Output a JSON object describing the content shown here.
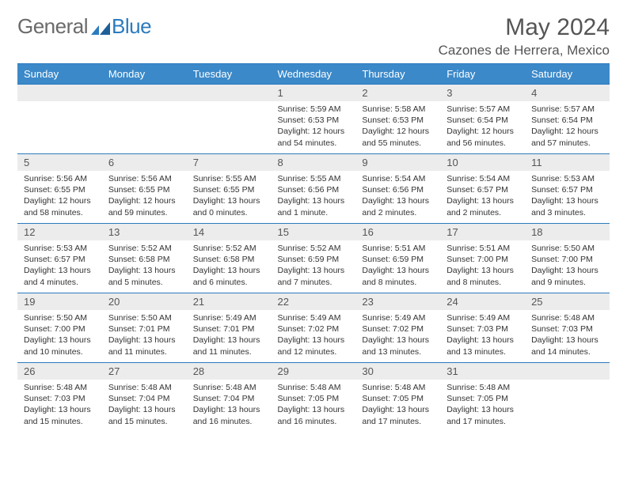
{
  "logo": {
    "part1": "General",
    "part2": "Blue"
  },
  "header": {
    "month_title": "May 2024",
    "location": "Cazones de Herrera, Mexico"
  },
  "colors": {
    "header_bg": "#3b89c9",
    "header_text": "#ffffff",
    "rule": "#2b7bbf",
    "daynum_bg": "#ececec",
    "text": "#333333",
    "logo_gray": "#6a6a6a",
    "logo_blue": "#2b7bbf"
  },
  "dow": [
    "Sunday",
    "Monday",
    "Tuesday",
    "Wednesday",
    "Thursday",
    "Friday",
    "Saturday"
  ],
  "weeks": [
    [
      null,
      null,
      null,
      {
        "d": "1",
        "sr": "5:59 AM",
        "ss": "6:53 PM",
        "dl": "12 hours and 54 minutes."
      },
      {
        "d": "2",
        "sr": "5:58 AM",
        "ss": "6:53 PM",
        "dl": "12 hours and 55 minutes."
      },
      {
        "d": "3",
        "sr": "5:57 AM",
        "ss": "6:54 PM",
        "dl": "12 hours and 56 minutes."
      },
      {
        "d": "4",
        "sr": "5:57 AM",
        "ss": "6:54 PM",
        "dl": "12 hours and 57 minutes."
      }
    ],
    [
      {
        "d": "5",
        "sr": "5:56 AM",
        "ss": "6:55 PM",
        "dl": "12 hours and 58 minutes."
      },
      {
        "d": "6",
        "sr": "5:56 AM",
        "ss": "6:55 PM",
        "dl": "12 hours and 59 minutes."
      },
      {
        "d": "7",
        "sr": "5:55 AM",
        "ss": "6:55 PM",
        "dl": "13 hours and 0 minutes."
      },
      {
        "d": "8",
        "sr": "5:55 AM",
        "ss": "6:56 PM",
        "dl": "13 hours and 1 minute."
      },
      {
        "d": "9",
        "sr": "5:54 AM",
        "ss": "6:56 PM",
        "dl": "13 hours and 2 minutes."
      },
      {
        "d": "10",
        "sr": "5:54 AM",
        "ss": "6:57 PM",
        "dl": "13 hours and 2 minutes."
      },
      {
        "d": "11",
        "sr": "5:53 AM",
        "ss": "6:57 PM",
        "dl": "13 hours and 3 minutes."
      }
    ],
    [
      {
        "d": "12",
        "sr": "5:53 AM",
        "ss": "6:57 PM",
        "dl": "13 hours and 4 minutes."
      },
      {
        "d": "13",
        "sr": "5:52 AM",
        "ss": "6:58 PM",
        "dl": "13 hours and 5 minutes."
      },
      {
        "d": "14",
        "sr": "5:52 AM",
        "ss": "6:58 PM",
        "dl": "13 hours and 6 minutes."
      },
      {
        "d": "15",
        "sr": "5:52 AM",
        "ss": "6:59 PM",
        "dl": "13 hours and 7 minutes."
      },
      {
        "d": "16",
        "sr": "5:51 AM",
        "ss": "6:59 PM",
        "dl": "13 hours and 8 minutes."
      },
      {
        "d": "17",
        "sr": "5:51 AM",
        "ss": "7:00 PM",
        "dl": "13 hours and 8 minutes."
      },
      {
        "d": "18",
        "sr": "5:50 AM",
        "ss": "7:00 PM",
        "dl": "13 hours and 9 minutes."
      }
    ],
    [
      {
        "d": "19",
        "sr": "5:50 AM",
        "ss": "7:00 PM",
        "dl": "13 hours and 10 minutes."
      },
      {
        "d": "20",
        "sr": "5:50 AM",
        "ss": "7:01 PM",
        "dl": "13 hours and 11 minutes."
      },
      {
        "d": "21",
        "sr": "5:49 AM",
        "ss": "7:01 PM",
        "dl": "13 hours and 11 minutes."
      },
      {
        "d": "22",
        "sr": "5:49 AM",
        "ss": "7:02 PM",
        "dl": "13 hours and 12 minutes."
      },
      {
        "d": "23",
        "sr": "5:49 AM",
        "ss": "7:02 PM",
        "dl": "13 hours and 13 minutes."
      },
      {
        "d": "24",
        "sr": "5:49 AM",
        "ss": "7:03 PM",
        "dl": "13 hours and 13 minutes."
      },
      {
        "d": "25",
        "sr": "5:48 AM",
        "ss": "7:03 PM",
        "dl": "13 hours and 14 minutes."
      }
    ],
    [
      {
        "d": "26",
        "sr": "5:48 AM",
        "ss": "7:03 PM",
        "dl": "13 hours and 15 minutes."
      },
      {
        "d": "27",
        "sr": "5:48 AM",
        "ss": "7:04 PM",
        "dl": "13 hours and 15 minutes."
      },
      {
        "d": "28",
        "sr": "5:48 AM",
        "ss": "7:04 PM",
        "dl": "13 hours and 16 minutes."
      },
      {
        "d": "29",
        "sr": "5:48 AM",
        "ss": "7:05 PM",
        "dl": "13 hours and 16 minutes."
      },
      {
        "d": "30",
        "sr": "5:48 AM",
        "ss": "7:05 PM",
        "dl": "13 hours and 17 minutes."
      },
      {
        "d": "31",
        "sr": "5:48 AM",
        "ss": "7:05 PM",
        "dl": "13 hours and 17 minutes."
      },
      null
    ]
  ],
  "labels": {
    "sunrise": "Sunrise:",
    "sunset": "Sunset:",
    "daylight": "Daylight:"
  }
}
